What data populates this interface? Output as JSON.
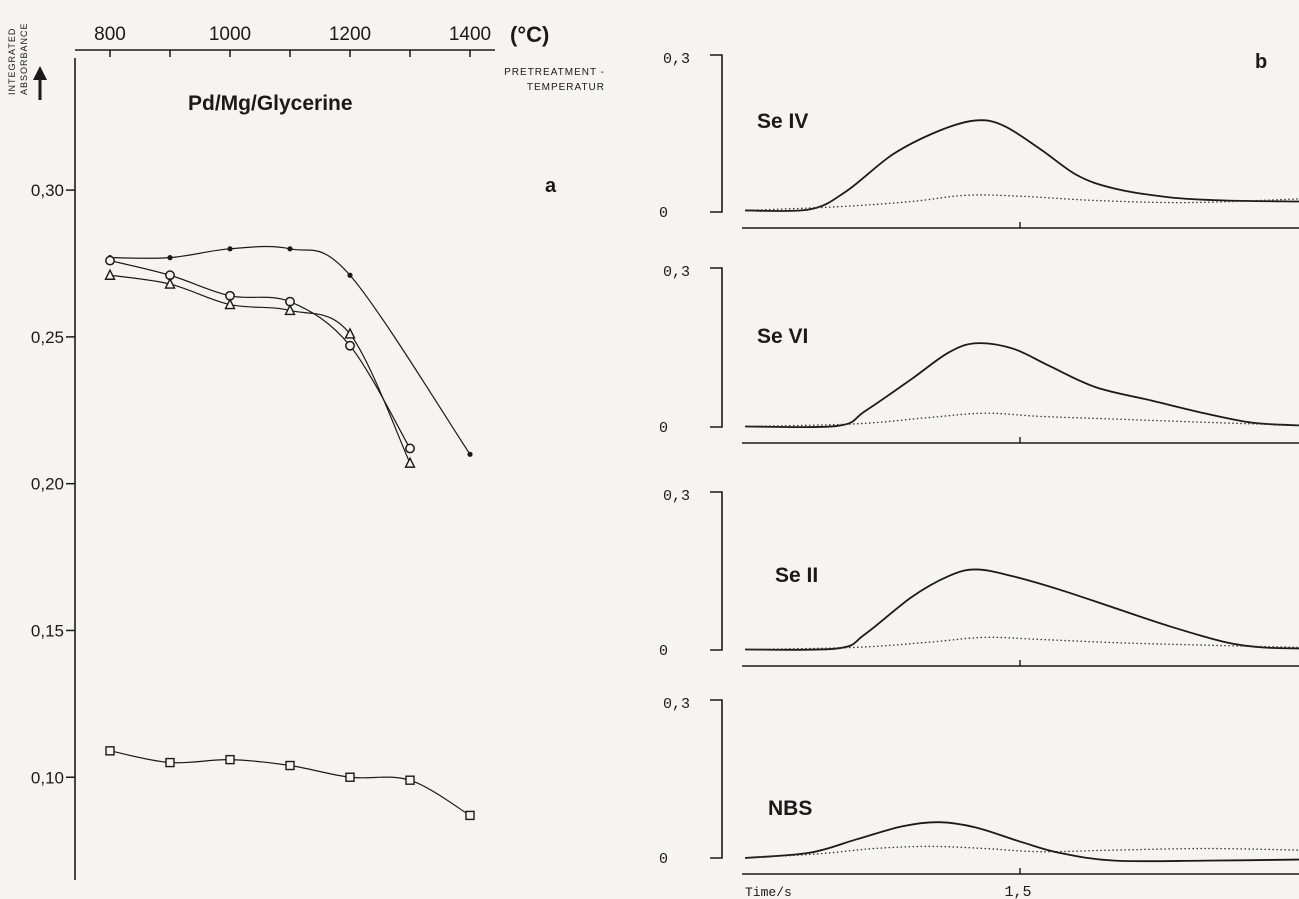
{
  "chart_data": [
    {
      "panel": "a",
      "type": "scatter",
      "title": "Pd/Mg/Glycerine",
      "ylabel_line1": "INTEGRATED",
      "ylabel_line2": "ABSORBANCE",
      "xlabel_line1": "PRETREATMENT -",
      "xlabel_line2": "TEMPERATUR",
      "x_unit": "(°C)",
      "x_ticks": [
        "800",
        "1000",
        "1200",
        "1400"
      ],
      "y_ticks": [
        "0,30",
        "0,25",
        "0,20",
        "0,15",
        "0,10"
      ],
      "xlim": [
        800,
        1400
      ],
      "ylim": [
        0.065,
        0.345
      ],
      "series": [
        {
          "marker": "dot",
          "x": [
            800,
            900,
            1000,
            1100,
            1200,
            1400
          ],
          "y": [
            0.277,
            0.277,
            0.28,
            0.28,
            0.271,
            0.21
          ]
        },
        {
          "marker": "circle",
          "x": [
            800,
            900,
            1000,
            1100,
            1200,
            1300
          ],
          "y": [
            0.276,
            0.271,
            0.264,
            0.262,
            0.247,
            0.212
          ]
        },
        {
          "marker": "triangle",
          "x": [
            800,
            900,
            1000,
            1100,
            1200,
            1300
          ],
          "y": [
            0.271,
            0.268,
            0.261,
            0.259,
            0.251,
            0.207
          ]
        },
        {
          "marker": "square",
          "x": [
            800,
            900,
            1000,
            1100,
            1200,
            1300,
            1400
          ],
          "y": [
            0.109,
            0.105,
            0.106,
            0.104,
            0.1,
            0.099,
            0.087
          ]
        }
      ]
    },
    {
      "panel": "b",
      "type": "line",
      "x_label": "Time/s",
      "x_tick": "1,5",
      "subplots": [
        {
          "name": "Se IV",
          "y_top": "0,3",
          "y_zero": "0",
          "signal": [
            [
              0,
              0.003
            ],
            [
              0.35,
              0.005
            ],
            [
              0.55,
              0.04
            ],
            [
              0.8,
              0.11
            ],
            [
              1.05,
              0.155
            ],
            [
              1.25,
              0.175
            ],
            [
              1.4,
              0.165
            ],
            [
              1.6,
              0.12
            ],
            [
              1.8,
              0.07
            ],
            [
              2.0,
              0.045
            ],
            [
              2.3,
              0.028
            ],
            [
              2.6,
              0.022
            ],
            [
              3.0,
              0.02
            ]
          ],
          "background": [
            [
              0,
              0.003
            ],
            [
              0.5,
              0.01
            ],
            [
              0.9,
              0.02
            ],
            [
              1.2,
              0.032
            ],
            [
              1.5,
              0.03
            ],
            [
              1.9,
              0.022
            ],
            [
              2.4,
              0.018
            ],
            [
              3.0,
              0.025
            ]
          ]
        },
        {
          "name": "Se VI",
          "y_top": "0,3",
          "y_zero": "0",
          "signal": [
            [
              0,
              0.001
            ],
            [
              0.5,
              0.002
            ],
            [
              0.65,
              0.03
            ],
            [
              0.9,
              0.09
            ],
            [
              1.1,
              0.14
            ],
            [
              1.25,
              0.158
            ],
            [
              1.45,
              0.148
            ],
            [
              1.65,
              0.115
            ],
            [
              1.9,
              0.075
            ],
            [
              2.2,
              0.05
            ],
            [
              2.5,
              0.025
            ],
            [
              2.75,
              0.008
            ],
            [
              3.0,
              0.003
            ]
          ],
          "background": [
            [
              0,
              0.001
            ],
            [
              0.6,
              0.006
            ],
            [
              1.0,
              0.018
            ],
            [
              1.3,
              0.026
            ],
            [
              1.6,
              0.02
            ],
            [
              2.0,
              0.015
            ],
            [
              2.4,
              0.01
            ],
            [
              3.0,
              0.003
            ]
          ]
        },
        {
          "name": "Se II",
          "y_top": "0,3",
          "y_zero": "0",
          "signal": [
            [
              0,
              0.001
            ],
            [
              0.5,
              0.003
            ],
            [
              0.65,
              0.03
            ],
            [
              0.9,
              0.1
            ],
            [
              1.1,
              0.14
            ],
            [
              1.25,
              0.153
            ],
            [
              1.45,
              0.14
            ],
            [
              1.7,
              0.115
            ],
            [
              2.0,
              0.08
            ],
            [
              2.3,
              0.045
            ],
            [
              2.6,
              0.015
            ],
            [
              2.8,
              0.005
            ],
            [
              3.0,
              0.003
            ]
          ],
          "background": [
            [
              0,
              0.001
            ],
            [
              0.6,
              0.005
            ],
            [
              1.0,
              0.015
            ],
            [
              1.3,
              0.024
            ],
            [
              1.6,
              0.02
            ],
            [
              2.0,
              0.014
            ],
            [
              2.4,
              0.01
            ],
            [
              3.0,
              0.005
            ]
          ]
        },
        {
          "name": "NBS",
          "y_top": "0,3",
          "y_zero": "0",
          "signal": [
            [
              0,
              0.0
            ],
            [
              0.35,
              0.01
            ],
            [
              0.6,
              0.035
            ],
            [
              0.85,
              0.06
            ],
            [
              1.05,
              0.068
            ],
            [
              1.25,
              0.058
            ],
            [
              1.5,
              0.03
            ],
            [
              1.7,
              0.01
            ],
            [
              2.0,
              -0.005
            ],
            [
              2.5,
              -0.005
            ],
            [
              3.0,
              -0.003
            ]
          ],
          "background": [
            [
              0,
              0.0
            ],
            [
              0.4,
              0.008
            ],
            [
              0.7,
              0.018
            ],
            [
              1.0,
              0.022
            ],
            [
              1.3,
              0.018
            ],
            [
              1.6,
              0.012
            ],
            [
              2.0,
              0.015
            ],
            [
              2.5,
              0.018
            ],
            [
              3.0,
              0.015
            ]
          ]
        }
      ]
    }
  ],
  "panel_a_label": "a",
  "panel_b_label": "b"
}
